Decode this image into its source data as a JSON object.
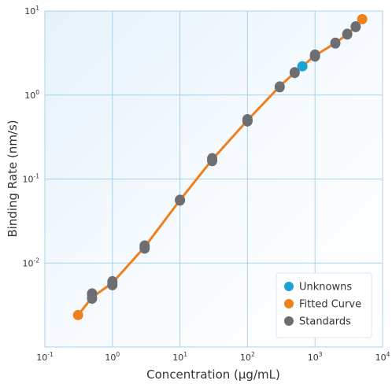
{
  "chart_data": {
    "type": "line",
    "xlabel": "Concentration (µg/mL)",
    "ylabel": "Binding Rate (nm/s)",
    "x_scale": "log",
    "y_scale": "log",
    "xlim": [
      0.1,
      10000
    ],
    "ylim": [
      0.001,
      10
    ],
    "grid": true,
    "legend_position": "bottom-right",
    "x_ticks": [
      {
        "base": "10",
        "exp": "-1"
      },
      {
        "base": "10",
        "exp": "0"
      },
      {
        "base": "10",
        "exp": "1"
      },
      {
        "base": "10",
        "exp": "2"
      },
      {
        "base": "10",
        "exp": "3"
      },
      {
        "base": "10",
        "exp": "4"
      }
    ],
    "y_ticks": [
      {
        "base": "10",
        "exp": "1"
      },
      {
        "base": "10",
        "exp": "0"
      },
      {
        "base": "10",
        "exp": "-1"
      },
      {
        "base": "10",
        "exp": "-2"
      }
    ],
    "series": [
      {
        "name": "Unknowns",
        "kind": "scatter",
        "color": "#1ba3d6",
        "x": [
          650
        ],
        "y": [
          2.2
        ]
      },
      {
        "name": "Fitted Curve",
        "kind": "line",
        "color": "#f07f1e",
        "x": [
          0.31,
          0.5,
          1,
          3,
          10,
          30,
          100,
          300,
          500,
          650,
          1000,
          2000,
          3000,
          4000,
          5000
        ],
        "y": [
          0.0024,
          0.0039,
          0.0058,
          0.0155,
          0.056,
          0.17,
          0.5,
          1.27,
          1.85,
          2.2,
          2.95,
          4.15,
          5.3,
          6.5,
          8.0
        ],
        "endpoint_markers": true
      },
      {
        "name": "Standards",
        "kind": "scatter",
        "color": "#6d6e71",
        "x": [
          0.5,
          0.5,
          1,
          1,
          3,
          3,
          10,
          30,
          30,
          100,
          100,
          300,
          500,
          1000,
          1000,
          2000,
          3000,
          4000
        ],
        "y": [
          0.0038,
          0.0043,
          0.0055,
          0.006,
          0.015,
          0.016,
          0.056,
          0.165,
          0.175,
          0.49,
          0.51,
          1.25,
          1.85,
          2.9,
          3.0,
          4.15,
          5.3,
          6.5
        ]
      }
    ]
  }
}
